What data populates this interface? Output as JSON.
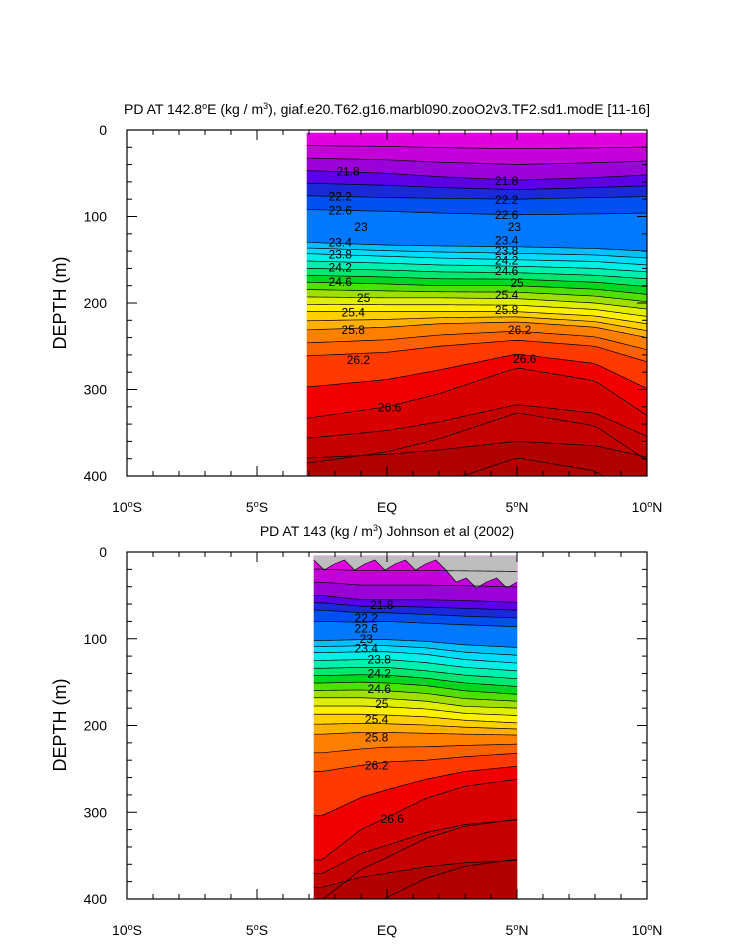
{
  "chart_data": [
    {
      "type": "contour",
      "title_prefix": "PD AT 142.8",
      "title_deg": "o",
      "title_mid": "E (kg / m",
      "title_sup": "3",
      "title_suffix": "), giaf.e20.T62.g16.marbl090.zooO2v3.TF2.sd1.modE [11-16]",
      "ylabel": "DEPTH (m)",
      "ylim": [
        400,
        0
      ],
      "xlim": [
        -10,
        10
      ],
      "data_extent_lat": [
        -3,
        10
      ],
      "y_ticks": [
        "0",
        "100",
        "200",
        "300",
        "400"
      ],
      "x_ticks": [
        {
          "num": "10",
          "deg": "o",
          "hemi": "S"
        },
        {
          "num": "5",
          "deg": "o",
          "hemi": "S"
        },
        {
          "num": "EQ",
          "deg": "",
          "hemi": ""
        },
        {
          "num": "5",
          "deg": "o",
          "hemi": "N"
        },
        {
          "num": "10",
          "deg": "o",
          "hemi": "N"
        }
      ],
      "isopycnal_depth_m": {
        "lat": [
          -3,
          0,
          2,
          5,
          8,
          10
        ],
        "levels": {
          "21.8": [
            47,
            50,
            54,
            58,
            55,
            52
          ],
          "22.2": [
            76,
            78,
            79,
            80,
            78,
            77
          ],
          "22.6": [
            92,
            94,
            96,
            98,
            97,
            96
          ],
          "23.4": [
            130,
            133,
            134,
            135,
            137,
            140
          ],
          "23.8": [
            143,
            146,
            148,
            150,
            152,
            156
          ],
          "24.2": [
            160,
            162,
            164,
            165,
            168,
            172
          ],
          "24.6": [
            176,
            178,
            180,
            180,
            184,
            190
          ],
          "25": [
            193,
            194,
            194,
            195,
            200,
            207
          ],
          "25.4": [
            210,
            210,
            210,
            210,
            215,
            224
          ],
          "25.8": [
            231,
            228,
            224,
            222,
            228,
            240
          ],
          "26.2": [
            261,
            257,
            250,
            243,
            250,
            268
          ],
          "26.6": [
            333,
            320,
            305,
            275,
            290,
            330
          ]
        }
      },
      "contour_labels": [
        {
          "text": "21.8",
          "lat": -1.5,
          "depth": 48
        },
        {
          "text": "21.8",
          "lat": 4.6,
          "depth": 59
        },
        {
          "text": "22.2",
          "lat": -1.8,
          "depth": 77
        },
        {
          "text": "22.2",
          "lat": 4.6,
          "depth": 81
        },
        {
          "text": "22.6",
          "lat": -1.8,
          "depth": 93
        },
        {
          "text": "22.6",
          "lat": 4.6,
          "depth": 98
        },
        {
          "text": "23",
          "lat": -1.0,
          "depth": 112
        },
        {
          "text": "23",
          "lat": 4.9,
          "depth": 112
        },
        {
          "text": "23.4",
          "lat": -1.8,
          "depth": 130
        },
        {
          "text": "23.4",
          "lat": 4.6,
          "depth": 128
        },
        {
          "text": "23.8",
          "lat": -1.8,
          "depth": 144
        },
        {
          "text": "23.8",
          "lat": 4.6,
          "depth": 140
        },
        {
          "text": "24.2",
          "lat": -1.8,
          "depth": 159
        },
        {
          "text": "24.2",
          "lat": 4.6,
          "depth": 151
        },
        {
          "text": "24.6",
          "lat": -1.8,
          "depth": 176
        },
        {
          "text": "24.6",
          "lat": 4.6,
          "depth": 163
        },
        {
          "text": "25",
          "lat": -0.9,
          "depth": 194
        },
        {
          "text": "25",
          "lat": 5.0,
          "depth": 177
        },
        {
          "text": "25.4",
          "lat": -1.3,
          "depth": 211
        },
        {
          "text": "25.4",
          "lat": 4.6,
          "depth": 191
        },
        {
          "text": "25.8",
          "lat": -1.3,
          "depth": 231
        },
        {
          "text": "25.8",
          "lat": 4.6,
          "depth": 208
        },
        {
          "text": "26.2",
          "lat": -1.1,
          "depth": 266
        },
        {
          "text": "26.2",
          "lat": 5.1,
          "depth": 231
        },
        {
          "text": "26.6",
          "lat": 0.1,
          "depth": 321
        },
        {
          "text": "26.6",
          "lat": 5.3,
          "depth": 265
        }
      ]
    },
    {
      "type": "contour",
      "title_prefix": "PD AT 143 (kg / m",
      "title_sup": "3",
      "title_suffix": ") Johnson et al (2002)",
      "ylabel": "DEPTH (m)",
      "ylim": [
        400,
        0
      ],
      "xlim": [
        -10,
        10
      ],
      "data_extent_lat": [
        -2.5,
        5
      ],
      "y_ticks": [
        "0",
        "100",
        "200",
        "300",
        "400"
      ],
      "x_ticks": [
        {
          "num": "10",
          "deg": "o",
          "hemi": "S"
        },
        {
          "num": "5",
          "deg": "o",
          "hemi": "S"
        },
        {
          "num": "EQ",
          "deg": "",
          "hemi": ""
        },
        {
          "num": "5",
          "deg": "o",
          "hemi": "N"
        },
        {
          "num": "10",
          "deg": "o",
          "hemi": "N"
        }
      ],
      "isopycnal_depth_m": {
        "lat": [
          -2.5,
          -1,
          0,
          1.5,
          3,
          5
        ],
        "levels": {
          "21.8": [
            50,
            55,
            55,
            55,
            56,
            58
          ],
          "22.2": [
            67,
            70,
            70,
            72,
            74,
            76
          ],
          "22.6": [
            80,
            81,
            80,
            82,
            84,
            86
          ],
          "23.4": [
            102,
            101,
            101,
            103,
            107,
            110
          ],
          "23.8": [
            116,
            115,
            115,
            118,
            124,
            128
          ],
          "24.2": [
            134,
            133,
            133,
            137,
            142,
            146
          ],
          "24.6": [
            151,
            150,
            151,
            154,
            160,
            164
          ],
          "25": [
            168,
            168,
            169,
            172,
            178,
            180
          ],
          "25.4": [
            187,
            187,
            188,
            190,
            194,
            197
          ],
          "25.8": [
            210,
            208,
            208,
            209,
            210,
            211
          ],
          "26.2": [
            253,
            246,
            242,
            240,
            236,
            232
          ],
          "26.6": [
            355,
            320,
            306,
            284,
            270,
            262
          ]
        }
      },
      "contour_labels": [
        {
          "text": "21.8",
          "lat": -0.2,
          "depth": 61
        },
        {
          "text": "22.2",
          "lat": -0.8,
          "depth": 76
        },
        {
          "text": "22.6",
          "lat": -0.8,
          "depth": 88
        },
        {
          "text": "23",
          "lat": -0.8,
          "depth": 100
        },
        {
          "text": "23.4",
          "lat": -0.8,
          "depth": 111
        },
        {
          "text": "23.8",
          "lat": -0.3,
          "depth": 124
        },
        {
          "text": "24.2",
          "lat": -0.3,
          "depth": 140
        },
        {
          "text": "24.6",
          "lat": -0.3,
          "depth": 158
        },
        {
          "text": "25",
          "lat": -0.2,
          "depth": 175
        },
        {
          "text": "25.4",
          "lat": -0.4,
          "depth": 193
        },
        {
          "text": "25.8",
          "lat": -0.4,
          "depth": 214
        },
        {
          "text": "26.2",
          "lat": -0.4,
          "depth": 246
        },
        {
          "text": "26.6",
          "lat": 0.2,
          "depth": 308
        }
      ]
    }
  ],
  "palette": [
    "#e000e0",
    "#c400d8",
    "#9a00d8",
    "#5c00e8",
    "#1a2ad8",
    "#0050f0",
    "#0078ff",
    "#00a0ff",
    "#00c0ff",
    "#00dcff",
    "#00f0e8",
    "#00f0b0",
    "#00e870",
    "#00d820",
    "#50e000",
    "#a0e000",
    "#e0ee00",
    "#fff000",
    "#ffd000",
    "#ffb000",
    "#ff9800",
    "#ff8000",
    "#ff6000",
    "#ff3a00",
    "#f00000",
    "#d80000",
    "#c40000",
    "#b00000"
  ],
  "mask_color": "#bdbdbd"
}
